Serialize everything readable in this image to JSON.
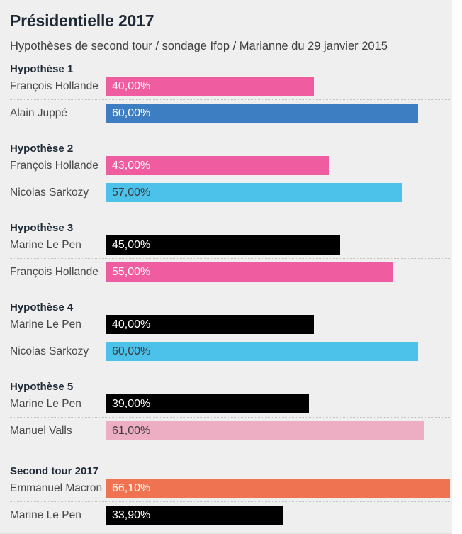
{
  "page": {
    "title": "Présidentielle 2017",
    "subtitle": "Hypothèses de second tour / sondage Ifop / Marianne du 29 janvier 2015"
  },
  "palette": {
    "background": "#efefef",
    "page_background": "#fdfdfd",
    "title_text": "#1f2935",
    "label_text": "#474747",
    "separator_dots": "#c2c2c2",
    "hollande_pink": "#ef5da0",
    "juppe_blue": "#3d7dc1",
    "sarkozy_cyan": "#4cc1e9",
    "le_pen_black": "#000000",
    "valls_light_pink": "#edadc3",
    "macron_orange": "#ef7350"
  },
  "chart_data": {
    "type": "bar",
    "orientation": "horizontal",
    "unit": "%",
    "scale_max": 66.1,
    "title": "Présidentielle 2017",
    "subtitle": "Hypothèses de second tour / sondage Ifop / Marianne du 29 janvier 2015",
    "sections": [
      {
        "heading": "Hypothèse 1",
        "bars": [
          {
            "label": "François Hollande",
            "value": 40.0,
            "value_label": "40,00%",
            "color": "#ef5da0",
            "value_text_color": "#ffffff"
          },
          {
            "label": "Alain Juppé",
            "value": 60.0,
            "value_label": "60,00%",
            "color": "#3d7dc1",
            "value_text_color": "#ffffff"
          }
        ]
      },
      {
        "heading": "Hypothèse 2",
        "bars": [
          {
            "label": "François Hollande",
            "value": 43.0,
            "value_label": "43,00%",
            "color": "#ef5da0",
            "value_text_color": "#ffffff"
          },
          {
            "label": "Nicolas Sarkozy",
            "value": 57.0,
            "value_label": "57,00%",
            "color": "#4cc1e9",
            "value_text_color": "#3b3b3b"
          }
        ]
      },
      {
        "heading": "Hypothèse 3",
        "bars": [
          {
            "label": "Marine Le Pen",
            "value": 45.0,
            "value_label": "45,00%",
            "color": "#000000",
            "value_text_color": "#ffffff"
          },
          {
            "label": "François Hollande",
            "value": 55.0,
            "value_label": "55,00%",
            "color": "#ef5da0",
            "value_text_color": "#ffffff"
          }
        ]
      },
      {
        "heading": "Hypothèse 4",
        "bars": [
          {
            "label": "Marine Le Pen",
            "value": 40.0,
            "value_label": "40,00%",
            "color": "#000000",
            "value_text_color": "#ffffff"
          },
          {
            "label": "Nicolas Sarkozy",
            "value": 60.0,
            "value_label": "60,00%",
            "color": "#4cc1e9",
            "value_text_color": "#3b3b3b"
          }
        ]
      },
      {
        "heading": "Hypothèse 5",
        "bars": [
          {
            "label": "Marine Le Pen",
            "value": 39.0,
            "value_label": "39,00%",
            "color": "#000000",
            "value_text_color": "#ffffff"
          },
          {
            "label": "Manuel Valls",
            "value": 61.0,
            "value_label": "61,00%",
            "color": "#edadc3",
            "value_text_color": "#3b3b3b"
          }
        ]
      },
      {
        "heading": "Second tour 2017",
        "final": true,
        "bars": [
          {
            "label": "Emmanuel Macron",
            "value": 66.1,
            "value_label": "66,10%",
            "color": "#ef7350",
            "value_text_color": "#ffffff"
          },
          {
            "label": "Marine Le Pen",
            "value": 33.9,
            "value_label": "33,90%",
            "color": "#000000",
            "value_text_color": "#ffffff"
          }
        ]
      }
    ]
  }
}
